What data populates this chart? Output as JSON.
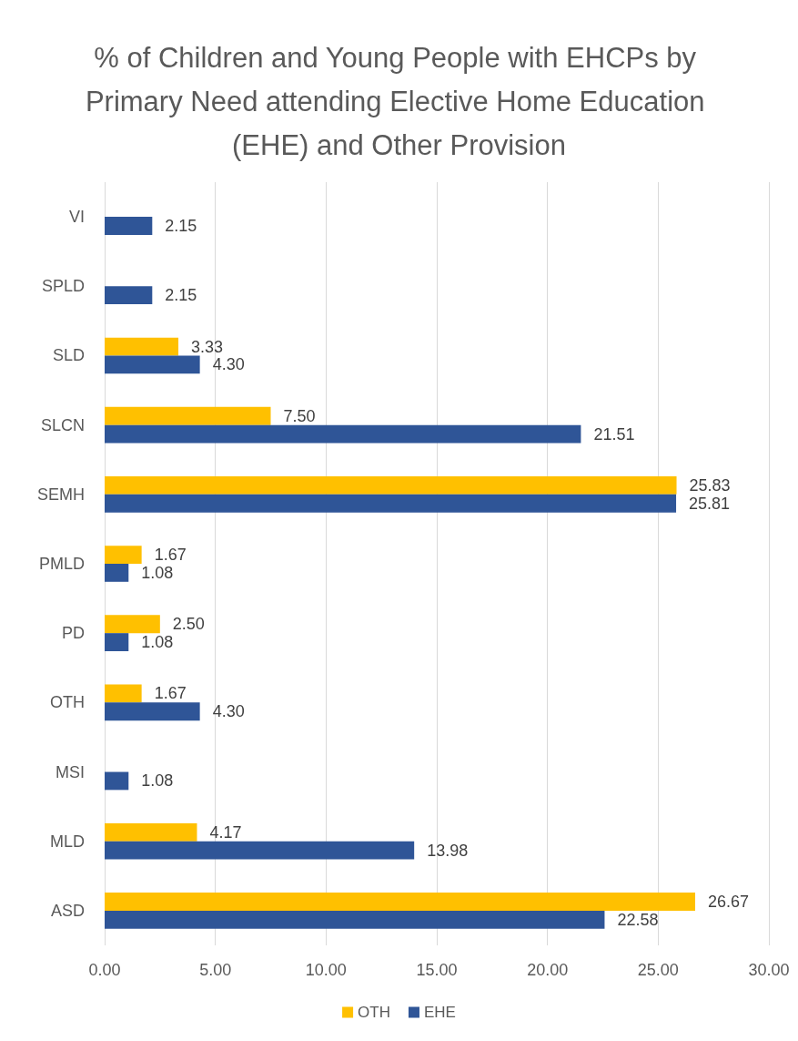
{
  "chart_data": {
    "type": "bar",
    "orientation": "horizontal",
    "title": "% of Children and Young People with EHCPs by Primary Need attending Elective Home Education (EHE) and Other Provision",
    "categories": [
      "VI",
      "SPLD",
      "SLD",
      "SLCN",
      "SEMH",
      "PMLD",
      "PD",
      "OTH",
      "MSI",
      "MLD",
      "ASD"
    ],
    "series": [
      {
        "name": "OTH",
        "color": "#ffc000",
        "values": [
          null,
          null,
          3.33,
          7.5,
          25.83,
          1.67,
          2.5,
          1.67,
          null,
          4.17,
          26.67
        ],
        "value_labels": [
          null,
          null,
          "3.33",
          "7.50",
          "25.83",
          "1.67",
          "2.50",
          "1.67",
          null,
          "4.17",
          "26.67"
        ]
      },
      {
        "name": "EHE",
        "color": "#2f5597",
        "values": [
          2.15,
          2.15,
          4.3,
          21.51,
          25.81,
          1.08,
          1.08,
          4.3,
          1.08,
          13.98,
          22.58
        ],
        "value_labels": [
          "2.15",
          "2.15",
          "4.30",
          "21.51",
          "25.81",
          "1.08",
          "1.08",
          "4.30",
          "1.08",
          "13.98",
          "22.58"
        ]
      }
    ],
    "xlim": [
      0,
      30
    ],
    "xticks": [
      {
        "value": 0,
        "label": "0.00"
      },
      {
        "value": 5,
        "label": "5.00"
      },
      {
        "value": 10,
        "label": "10.00"
      },
      {
        "value": 15,
        "label": "15.00"
      },
      {
        "value": 20,
        "label": "20.00"
      },
      {
        "value": 25,
        "label": "25.00"
      },
      {
        "value": 30,
        "label": "30.00"
      }
    ],
    "grid": "x",
    "legend": "bottom"
  }
}
